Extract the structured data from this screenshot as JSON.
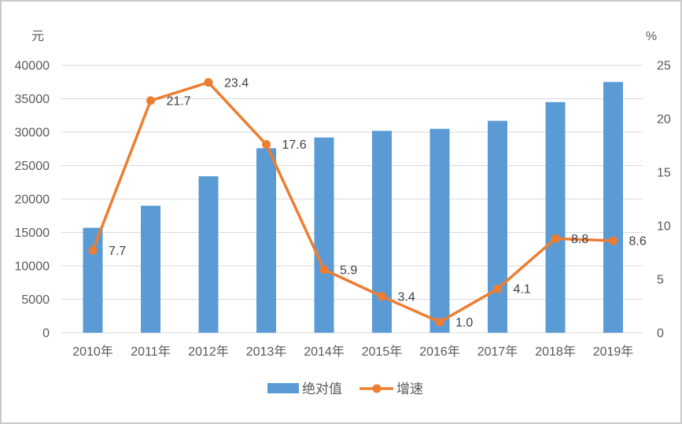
{
  "chart_data": {
    "type": "bar+line",
    "title": "",
    "categories": [
      "2010年",
      "2011年",
      "2012年",
      "2013年",
      "2014年",
      "2015年",
      "2016年",
      "2017年",
      "2018年",
      "2019年"
    ],
    "series": [
      {
        "name": "绝对值",
        "type": "bar",
        "axis": "left",
        "color": "#5B9BD5",
        "values": [
          15700,
          19000,
          23400,
          27600,
          29200,
          30200,
          30500,
          31700,
          34500,
          37500
        ]
      },
      {
        "name": "增速",
        "type": "line",
        "axis": "right",
        "color": "#ED7D31",
        "values": [
          7.7,
          21.7,
          23.4,
          17.6,
          5.9,
          3.4,
          1.0,
          4.1,
          8.8,
          8.6
        ],
        "data_labels": [
          "7.7",
          "21.7",
          "23.4",
          "17.6",
          "5.9",
          "3.4",
          "1.0",
          "4.1",
          "8.8",
          "8.6"
        ]
      }
    ],
    "left_axis": {
      "unit": "元",
      "min": 0,
      "max": 40000,
      "step": 5000,
      "tick_labels": [
        "0",
        "5000",
        "10000",
        "15000",
        "20000",
        "25000",
        "30000",
        "35000",
        "40000"
      ]
    },
    "right_axis": {
      "unit": "%",
      "min": 0,
      "max": 25,
      "step": 5,
      "tick_labels": [
        "0",
        "5",
        "10",
        "15",
        "20",
        "25"
      ]
    },
    "grid": true,
    "legend_position": "bottom",
    "legend": {
      "bar_label": "绝对值",
      "line_label": "增速"
    }
  },
  "colors": {
    "bar": "#5B9BD5",
    "line": "#ED7D31",
    "grid": "#D9D9D9",
    "axis_text": "#595959",
    "data_label_text": "#404040",
    "background": "#FFFFFF",
    "frame_border": "#C9C9C9"
  }
}
